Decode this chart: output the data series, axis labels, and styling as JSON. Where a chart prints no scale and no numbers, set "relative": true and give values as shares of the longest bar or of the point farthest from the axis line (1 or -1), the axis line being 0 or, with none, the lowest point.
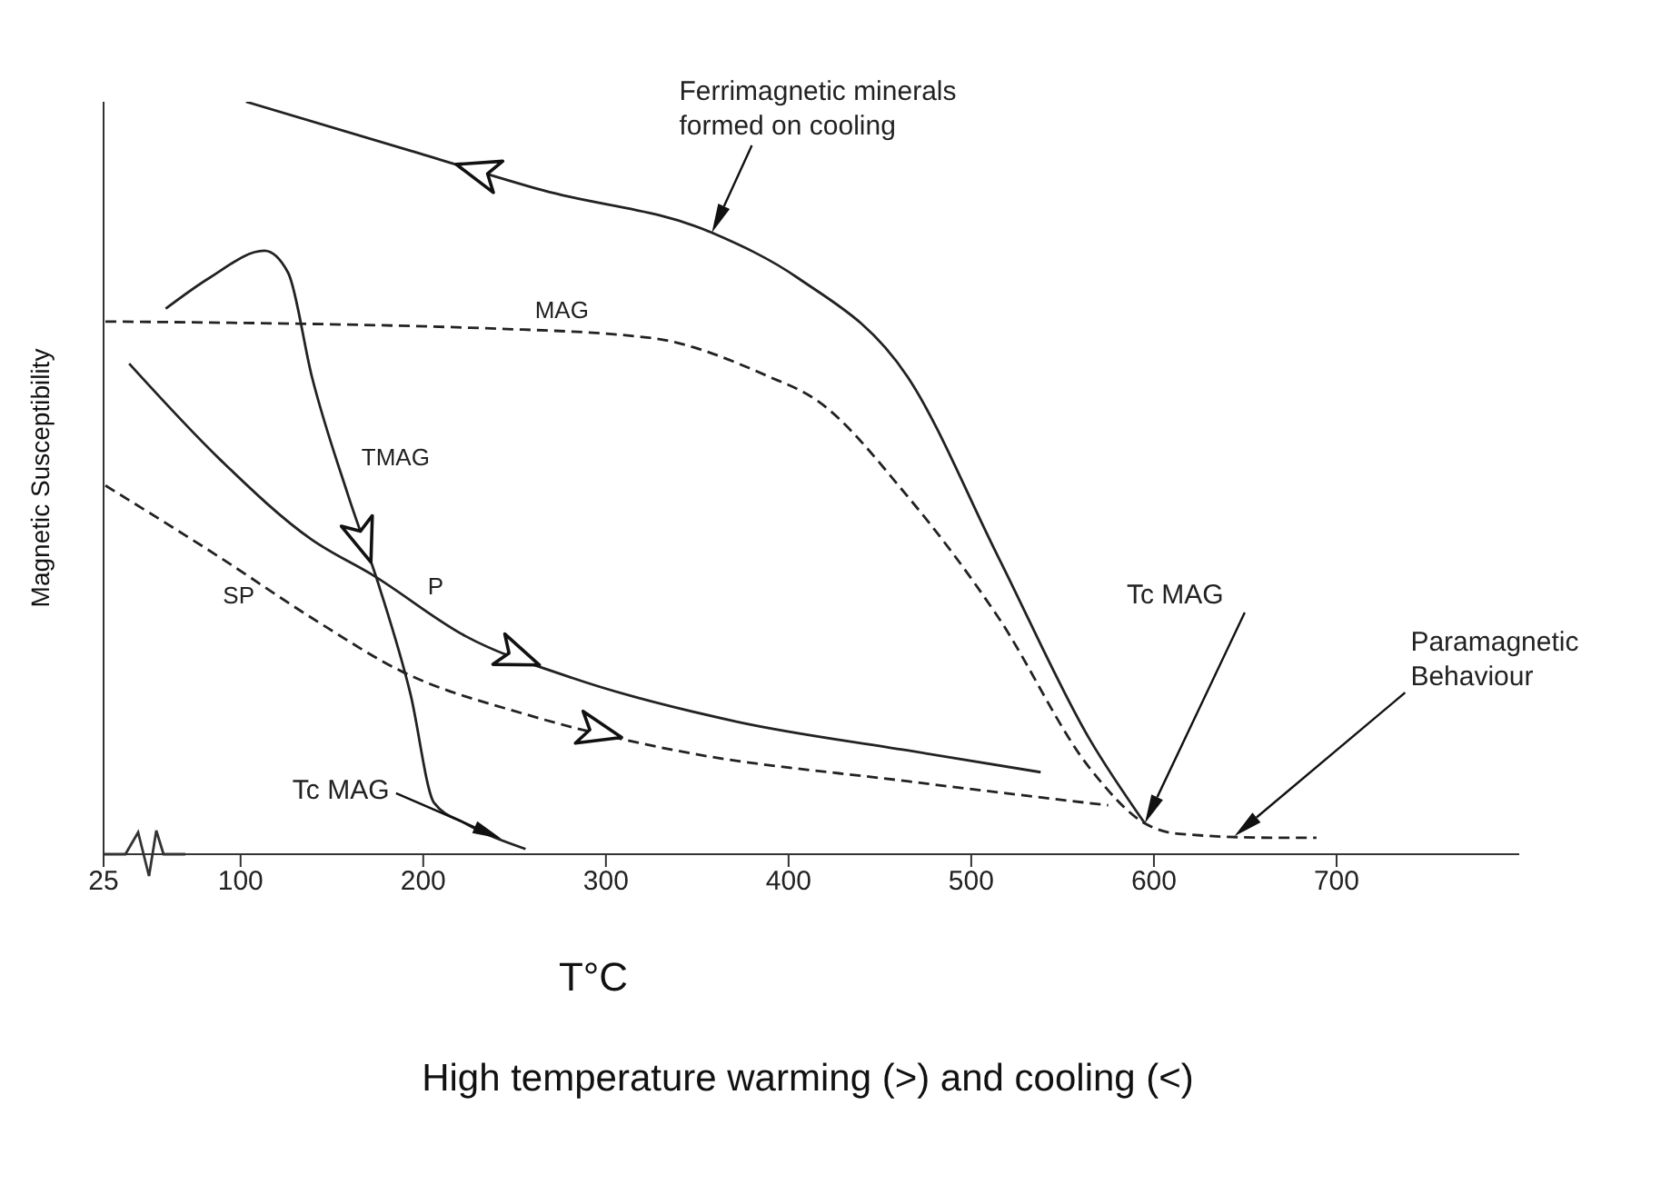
{
  "chart_data": {
    "type": "line",
    "relative": true,
    "xlabel": "T°C",
    "ylabel": "Magnetic Susceptibility",
    "xlim": [
      25,
      800
    ],
    "xticks": [
      25,
      100,
      200,
      300,
      400,
      500,
      600,
      700
    ],
    "grid": false,
    "legend": false,
    "marker": "none",
    "annotations": [
      "Ferrimagnetic minerals formed on cooling",
      "Tc MAG",
      "Paramagnetic Behaviour",
      "Tc MAG",
      "High temperature warming (>) and cooling (<)"
    ],
    "series": [
      {
        "color": "#222222",
        "line_style": "solid",
        "x": [
          103,
          193,
          266,
          358,
          405,
          465,
          515,
          565,
          595
        ],
        "values": [
          1.0,
          0.935,
          0.882,
          0.826,
          0.766,
          0.635,
          0.394,
          0.152,
          0.041
        ]
      },
      {
        "name": "MAG",
        "color": "#222222",
        "line_style": "dashed",
        "x": [
          26,
          246,
          325,
          388,
          415,
          465,
          515,
          565,
          595,
          614,
          664,
          689
        ],
        "values": [
          0.708,
          0.698,
          0.686,
          0.636,
          0.604,
          0.476,
          0.314,
          0.114,
          0.041,
          0.027,
          0.022,
          0.022
        ]
      },
      {
        "name": "TMAG",
        "color": "#222222",
        "line_style": "solid",
        "x": [
          59,
          83,
          113,
          126,
          139,
          159,
          176,
          193,
          206,
          223,
          256
        ],
        "values": [
          0.725,
          0.766,
          0.802,
          0.773,
          0.635,
          0.476,
          0.355,
          0.213,
          0.068,
          0.041,
          0.007
        ]
      },
      {
        "name": "P",
        "color": "#222222",
        "line_style": "solid",
        "x": [
          39,
          89,
          139,
          173,
          223,
          282,
          372,
          465,
          538
        ],
        "values": [
          0.652,
          0.524,
          0.418,
          0.37,
          0.29,
          0.234,
          0.176,
          0.138,
          0.109
        ]
      },
      {
        "name": "SP",
        "color": "#222222",
        "line_style": "dashed",
        "x": [
          26,
          89,
          139,
          189,
          256,
          338,
          465,
          575
        ],
        "values": [
          0.49,
          0.394,
          0.314,
          0.242,
          0.186,
          0.138,
          0.097,
          0.065
        ]
      }
    ]
  }
}
